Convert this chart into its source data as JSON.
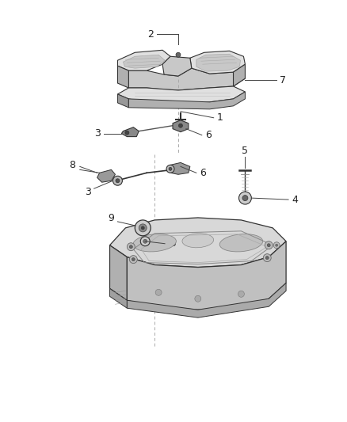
{
  "bg_color": "#ffffff",
  "fig_width": 4.38,
  "fig_height": 5.33,
  "dpi": 100,
  "line_color": "#444444",
  "part_outline": "#333333",
  "label_color": "#222222"
}
